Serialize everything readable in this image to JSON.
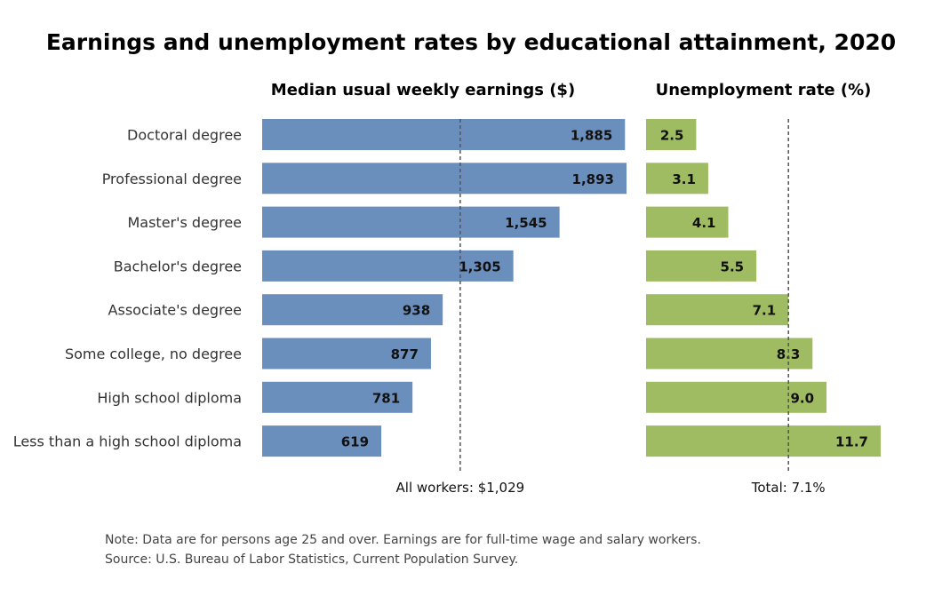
{
  "colors": {
    "earnings_bar": "#6b8fbd",
    "unemployment_bar": "#9fbc62",
    "reference_line": "#555555"
  },
  "chart_data": {
    "type": "bar",
    "orientation": "horizontal",
    "title": "Earnings and unemployment rates by educational attainment, 2020",
    "categories": [
      "Doctoral degree",
      "Professional degree",
      "Master's degree",
      "Bachelor's degree",
      "Associate's degree",
      "Some college, no degree",
      "High school diploma",
      "Less than a high school diploma"
    ],
    "panels": [
      {
        "name": "earnings",
        "title": "Median usual weekly earnings ($)",
        "values": [
          1885,
          1893,
          1545,
          1305,
          938,
          877,
          781,
          619
        ],
        "labels": [
          "1,885",
          "1,893",
          "1,545",
          "1,305",
          "938",
          "877",
          "781",
          "619"
        ],
        "reference_value": 1029,
        "reference_label": "All workers: $1,029",
        "xlim": [
          0,
          1893
        ]
      },
      {
        "name": "unemployment",
        "title": "Unemployment rate (%)",
        "values": [
          2.5,
          3.1,
          4.1,
          5.5,
          7.1,
          8.3,
          9.0,
          11.7
        ],
        "labels": [
          "2.5",
          "3.1",
          "4.1",
          "5.5",
          "7.1",
          "8.3",
          "9.0",
          "11.7"
        ],
        "reference_value": 7.1,
        "reference_label": "Total: 7.1%",
        "xlim": [
          0,
          11.7
        ]
      }
    ],
    "note": "Note: Data are for persons age 25 and over. Earnings are for full-time wage and salary workers.",
    "source": "Source: U.S. Bureau of Labor Statistics, Current Population Survey."
  }
}
